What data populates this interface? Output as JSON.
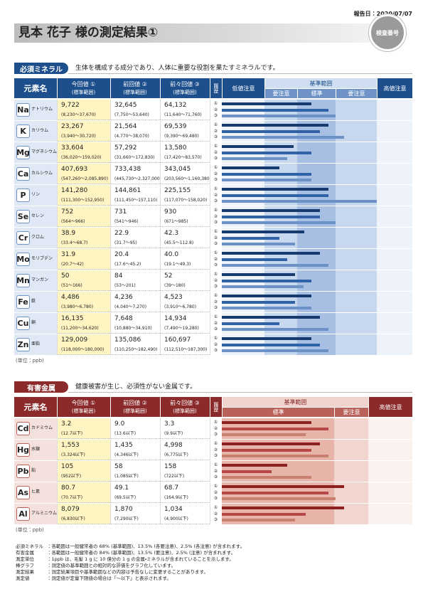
{
  "header": {
    "report_date": "報告日：2020/07/07",
    "title": "見本 花子 様の測定結果①",
    "badge": "検査番号"
  },
  "history_marks": [
    "①",
    "②",
    "③"
  ],
  "essential": {
    "label": "必須ミネラル",
    "description": "生体を構成する成分であり、人体に重要な役割を果たすミネラルです。",
    "columns": {
      "element": "元素名",
      "current": "今回値 ①",
      "previous": "前回値 ②",
      "before_previous": "前々回値 ③",
      "range_note": "(標準範囲)",
      "history": "履歴",
      "low_caution": "低値注意",
      "reference": "基準範囲",
      "caution_low": "要注意",
      "standard": "標準",
      "caution_high": "要注意",
      "high_caution": "高値注意"
    },
    "rows": [
      {
        "symbol": "Na",
        "name": "ナトリウム",
        "results": [
          [
            "9,722",
            "(8,230～37,670)"
          ],
          [
            "32,645",
            "(7,750～53,640)"
          ],
          [
            "64,132",
            "(11,640～71,760)"
          ]
        ]
      },
      {
        "symbol": "K",
        "name": "カリウム",
        "results": [
          [
            "23,267",
            "(3,940～30,720)"
          ],
          [
            "21,564",
            "(4,770～38,070)"
          ],
          [
            "69,539",
            "(9,390～69,480)"
          ]
        ]
      },
      {
        "symbol": "Mg",
        "name": "マグネシウム",
        "results": [
          [
            "33,604",
            "(36,020～159,020)"
          ],
          [
            "57,292",
            "(31,660～172,830)"
          ],
          [
            "13,580",
            "(17,420～83,570)"
          ]
        ]
      },
      {
        "symbol": "Ca",
        "name": "カルシウム",
        "results": [
          [
            "407,693",
            "(547,260～2,085,890)"
          ],
          [
            "733,438",
            "(445,730～2,327,000)"
          ],
          [
            "343,045",
            "(203,560～1,160,380)"
          ]
        ]
      },
      {
        "symbol": "P",
        "name": "リン",
        "results": [
          [
            "141,280",
            "(111,300～152,950)"
          ],
          [
            "144,861",
            "(111,450～157,110)"
          ],
          [
            "225,155",
            "(117,070～158,020)"
          ]
        ]
      },
      {
        "symbol": "Se",
        "name": "セレン",
        "results": [
          [
            "752",
            "(564～966)"
          ],
          [
            "731",
            "(541～946)"
          ],
          [
            "930",
            "(671～985)"
          ]
        ]
      },
      {
        "symbol": "Cr",
        "name": "クロム",
        "results": [
          [
            "38.9",
            "(33.4～68.7)"
          ],
          [
            "22.9",
            "(31.7～95)"
          ],
          [
            "42.3",
            "(45.5～112.8)"
          ]
        ]
      },
      {
        "symbol": "Mo",
        "name": "モリブデン",
        "results": [
          [
            "31.9",
            "(20.7～42)"
          ],
          [
            "20.4",
            "(17.6～45.2)"
          ],
          [
            "40.0",
            "(19.1～49.3)"
          ]
        ]
      },
      {
        "symbol": "Mn",
        "name": "マンガン",
        "results": [
          [
            "50",
            "(51～166)"
          ],
          [
            "84",
            "(53～201)"
          ],
          [
            "52",
            "(39～180)"
          ]
        ]
      },
      {
        "symbol": "Fe",
        "name": "鉄",
        "results": [
          [
            "4,486",
            "(3,980～6,780)"
          ],
          [
            "4,236",
            "(4,040～7,270)"
          ],
          [
            "4,523",
            "(3,910～6,780)"
          ]
        ]
      },
      {
        "symbol": "Cu",
        "name": "銅",
        "results": [
          [
            "16,135",
            "(11,200～34,620)"
          ],
          [
            "7,648",
            "(10,880～34,910)"
          ],
          [
            "14,934",
            "(7,490～19,280)"
          ]
        ]
      },
      {
        "symbol": "Zn",
        "name": "亜鉛",
        "results": [
          [
            "129,009",
            "(118,000～180,000)"
          ],
          [
            "135,086",
            "(110,250～182,490)"
          ],
          [
            "160,697",
            "(112,510～187,300)"
          ]
        ]
      }
    ],
    "unit": "(単位：ppb)"
  },
  "harmful": {
    "label": "有害金属",
    "description": "健康被害が生じ、必須性がない金属です。",
    "columns": {
      "element": "元素名",
      "current": "今回値 ①",
      "previous": "前回値 ②",
      "before_previous": "前々回値 ③",
      "range_note": "(標準範囲)",
      "history": "履歴",
      "reference": "基準範囲",
      "standard": "標準",
      "caution_high": "要注意",
      "high_caution": "高値注意"
    },
    "rows": [
      {
        "symbol": "Cd",
        "name": "カドミウム",
        "results": [
          [
            "3.2",
            "(12.7以下)"
          ],
          [
            "9.0",
            "(13.6以下)"
          ],
          [
            "3.3",
            "(9.9以下)"
          ]
        ]
      },
      {
        "symbol": "Hg",
        "name": "水銀",
        "results": [
          [
            "1,553",
            "(3,324以下)"
          ],
          [
            "1,435",
            "(4,346以下)"
          ],
          [
            "4,998",
            "(6,775以下)"
          ]
        ]
      },
      {
        "symbol": "Pb",
        "name": "鉛",
        "results": [
          [
            "105",
            "(952以下)"
          ],
          [
            "58",
            "(1,085以下)"
          ],
          [
            "158",
            "(722以下)"
          ]
        ]
      },
      {
        "symbol": "As",
        "name": "ヒ素",
        "results": [
          [
            "80.7",
            "(70.7以下)"
          ],
          [
            "49.1",
            "(69.5以下)"
          ],
          [
            "68.7",
            "(164.9以下)"
          ]
        ]
      },
      {
        "symbol": "Al",
        "name": "アルミニウム",
        "results": [
          [
            "8,079",
            "(6,830以下)"
          ],
          [
            "1,870",
            "(7,290以下)"
          ],
          [
            "1,034",
            "(4,900以下)"
          ]
        ]
      }
    ],
    "unit": "(単位：ppb)"
  },
  "notes": [
    [
      "必須ミネラル",
      "：各範囲は一般健常者の 68% (基準範囲)、13.5% (各要注意)、2.5% (各注意) が含まれます。"
    ],
    [
      "有害金属",
      "：各範囲は一般健常者の 84% (基準範囲)、13.5% (要注意)、2.5% (注意) が含まれます。"
    ],
    [
      "測定単位",
      "：1ppb は、毛髪 1 g に 10 億分の 1 g の金属・ミネラルが含まれていることを示します。"
    ],
    [
      "棒グラフ",
      "：測定値の基準範囲との相対的な評価をグラフ化しています。"
    ],
    [
      "測定結果",
      "：測定結果項目や基準範囲などの内容は予告なしに変更することがあります。"
    ],
    [
      "測定値",
      "：測定値が定量下限値の場合は「～以下」と表示されます。"
    ]
  ]
}
